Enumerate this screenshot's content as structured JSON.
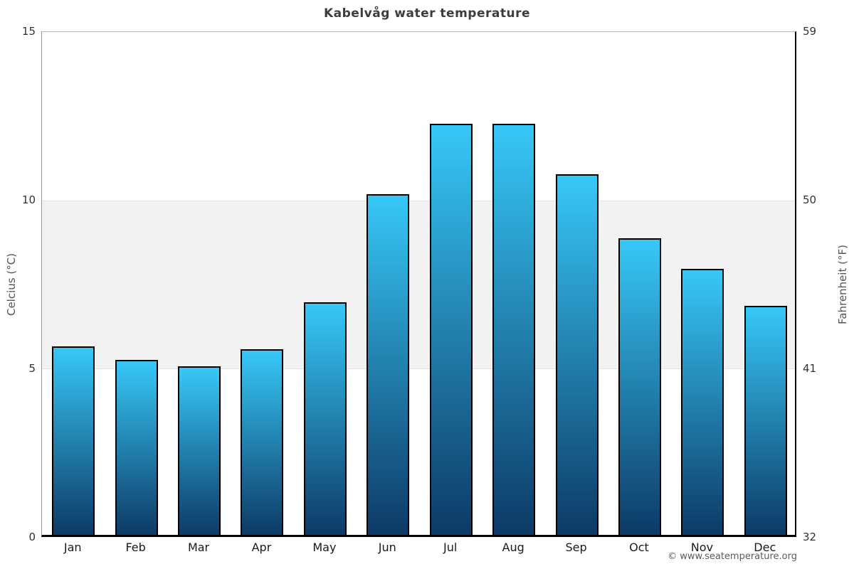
{
  "title": "Kabelvåg water temperature",
  "axes": {
    "left_label": "Celcius (°C)",
    "right_label": "Fahrenheit (°F)"
  },
  "copyright": "© www.seatemperature.org",
  "colors": {
    "bar_gradient_top": "#37c8f7",
    "bar_gradient_bottom": "#0d3a66",
    "bar_border": "#000000",
    "shade_band": "#f2f2f2",
    "title_text": "#3d3d3d",
    "axis_text": "#555555"
  },
  "chart_data": {
    "type": "bar",
    "title": "Kabelvåg water temperature",
    "categories": [
      "Jan",
      "Feb",
      "Mar",
      "Apr",
      "May",
      "Jun",
      "Jul",
      "Aug",
      "Sep",
      "Oct",
      "Nov",
      "Dec"
    ],
    "values": [
      5.6,
      5.2,
      5.0,
      5.5,
      6.9,
      10.1,
      12.2,
      12.2,
      10.7,
      8.8,
      7.9,
      6.8
    ],
    "xlabel": "",
    "ylabel": "Celcius (°C)",
    "y2label": "Fahrenheit (°F)",
    "ylim": [
      0,
      15
    ],
    "y2lim": [
      32,
      59
    ],
    "yticks": [
      15,
      10,
      5,
      0
    ],
    "y2ticks": [
      59,
      50,
      41,
      32
    ],
    "shaded_band_celsius": [
      5,
      10
    ],
    "grid": false,
    "legend": "none"
  }
}
